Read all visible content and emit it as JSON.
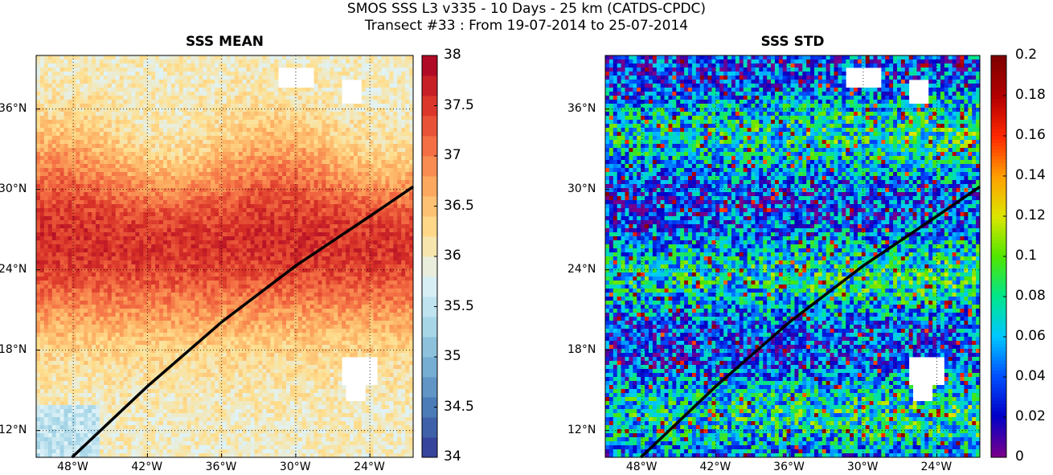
{
  "figure": {
    "title_line1": "SMOS SSS L3 v335 - 10 Days - 25 km (CATDS-CPDC)",
    "title_line2": "Transect #33 : From 19-07-2014 to 25-07-2014"
  },
  "maps": [
    {
      "id": "mean",
      "title": "SSS MEAN",
      "lon_ticks": [
        "48°W",
        "42°W",
        "36°W",
        "30°W",
        "24°W"
      ],
      "lat_ticks": [
        "36°N",
        "30°N",
        "24°N",
        "18°N",
        "12°N"
      ],
      "colorbar": {
        "min": 34,
        "max": 38,
        "ticks": [
          "34",
          "34.5",
          "35",
          "35.5",
          "36",
          "36.5",
          "37",
          "37.5",
          "38"
        ],
        "colormap": "RdYlBu_r"
      }
    },
    {
      "id": "std",
      "title": "SSS STD",
      "lon_ticks": [
        "48°W",
        "42°W",
        "36°W",
        "30°W",
        "24°W"
      ],
      "lat_ticks": [
        "36°N",
        "30°N",
        "24°N",
        "18°N",
        "12°N"
      ],
      "colorbar": {
        "min": 0,
        "max": 0.2,
        "ticks": [
          "0",
          "0.02",
          "0.04",
          "0.06",
          "0.08",
          "0.1",
          "0.12",
          "0.14",
          "0.16",
          "0.18",
          "0.2"
        ],
        "colormap": "jet"
      }
    }
  ],
  "map_extent": {
    "lon_min": -51,
    "lon_max": -20.5,
    "lat_min": 10,
    "lat_max": 40
  },
  "transect": {
    "lon": [
      -48.1,
      -42,
      -36,
      -30,
      -24,
      -20.5
    ],
    "lat": [
      10,
      15.3,
      20.1,
      24.3,
      28,
      30.2
    ]
  }
}
